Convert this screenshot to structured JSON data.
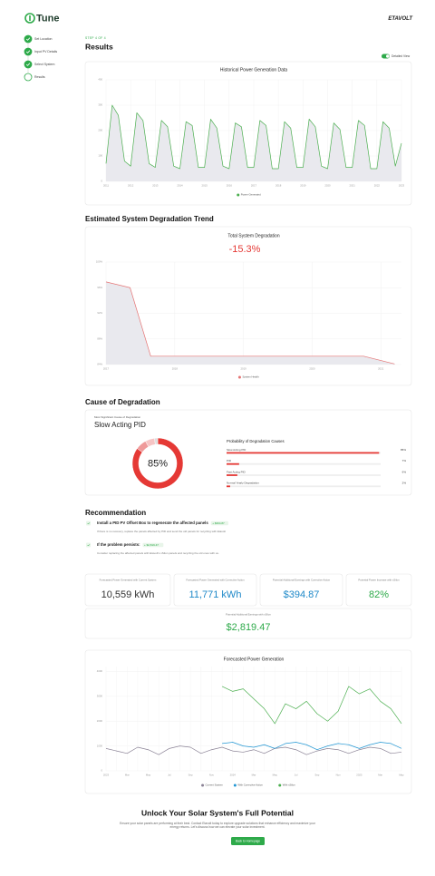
{
  "header": {
    "logo": "Tune",
    "brand": "ETAVOLT"
  },
  "steps": [
    {
      "label": "Set Location",
      "done": true
    },
    {
      "label": "Input PV Details",
      "done": true
    },
    {
      "label": "Select System",
      "done": true
    },
    {
      "label": "Results",
      "done": false
    }
  ],
  "results": {
    "step": "STEP 4 OF 4",
    "title": "Results",
    "toggle_label": "Detailed View",
    "degradation_heading": "Estimated System Degradation Trend",
    "cause_heading": "Cause of Degradation",
    "recommendation_heading": "Recommendation"
  },
  "chart_data": [
    {
      "type": "area",
      "title": "Historical Power Generation Data",
      "x": [
        2011,
        2011.25,
        2011.5,
        2011.75,
        2012,
        2012.25,
        2012.5,
        2012.75,
        2013,
        2013.25,
        2013.5,
        2013.75,
        2014,
        2014.25,
        2014.5,
        2014.75,
        2015,
        2015.25,
        2015.5,
        2015.75,
        2016,
        2016.25,
        2016.5,
        2016.75,
        2017,
        2017.25,
        2017.5,
        2017.75,
        2018,
        2018.25,
        2018.5,
        2018.75,
        2019,
        2019.25,
        2019.5,
        2019.75,
        2020,
        2020.25,
        2020.5,
        2020.75,
        2021,
        2021.25,
        2021.5,
        2021.75,
        2022,
        2022.25,
        2022.5,
        2022.75,
        2023
      ],
      "series": [
        {
          "name": "Power Generated",
          "color": "#4caf50",
          "values": [
            70,
            300,
            260,
            80,
            60,
            270,
            240,
            70,
            55,
            240,
            215,
            60,
            50,
            235,
            220,
            55,
            55,
            245,
            210,
            60,
            50,
            230,
            215,
            55,
            55,
            240,
            220,
            50,
            50,
            235,
            210,
            55,
            55,
            245,
            215,
            60,
            50,
            230,
            205,
            55,
            55,
            240,
            220,
            50,
            50,
            235,
            210,
            60,
            150
          ]
        }
      ],
      "xlim": [
        2011,
        2023
      ],
      "xticks": [
        2011,
        2012,
        2013,
        2014,
        2015,
        2016,
        2017,
        2018,
        2019,
        2020,
        2021,
        2022,
        2023
      ],
      "ylim": [
        0,
        400
      ],
      "yticks": [
        0,
        100,
        200,
        300,
        400
      ],
      "grid": true
    },
    {
      "type": "area",
      "title": "Total System Degradation",
      "annotation": "-15.3%",
      "x": [
        2017,
        2017.35,
        2017.65,
        2020.75,
        2021.2
      ],
      "series": [
        {
          "name": "System Health",
          "color": "#e57373",
          "values": [
            96.9,
            96.0,
            85.3,
            85.3,
            84.1
          ]
        }
      ],
      "xlim": [
        2017,
        2021.3
      ],
      "xticks": [
        2017,
        2018,
        2019,
        2020,
        2021
      ],
      "ylim": [
        84,
        100
      ],
      "yticks": [
        {
          "value": 84,
          "label": "84%"
        },
        {
          "value": 88,
          "label": "88%"
        },
        {
          "value": 92,
          "label": "92%"
        },
        {
          "value": 96,
          "label": "96%"
        },
        {
          "value": 100,
          "label": "100%"
        }
      ],
      "grid": true
    },
    {
      "type": "line",
      "title": "Forecasted Power Generation",
      "categories": [
        "2023",
        null,
        "Mar",
        null,
        "May",
        null,
        "Jul",
        null,
        "Sep",
        null,
        "Nov",
        null,
        "2024",
        null,
        "Mar",
        null,
        "May",
        null,
        "Jul",
        null,
        "Sep",
        null,
        "Nov",
        null,
        "2025",
        null,
        "Mar",
        null,
        "May"
      ],
      "series": [
        {
          "name": "Current System",
          "color": "#8a8295",
          "values": [
            900,
            800,
            700,
            950,
            850,
            650,
            900,
            1000,
            950,
            700,
            850,
            950,
            800,
            750,
            850,
            700,
            900,
            950,
            850,
            650,
            800,
            900,
            850,
            700,
            850,
            950,
            900,
            700,
            750
          ]
        },
        {
          "name": "With Corrective Action",
          "color": "#2196d3",
          "values": [
            null,
            null,
            null,
            null,
            null,
            null,
            null,
            null,
            null,
            null,
            null,
            1100,
            1150,
            1000,
            950,
            1050,
            900,
            1100,
            1150,
            1050,
            850,
            1000,
            1100,
            1050,
            900,
            1050,
            1150,
            1100,
            900
          ]
        },
        {
          "name": "With xSilon",
          "color": "#4caf50",
          "values": [
            null,
            null,
            null,
            null,
            null,
            null,
            null,
            null,
            null,
            null,
            null,
            3400,
            3200,
            3300,
            2900,
            2500,
            1900,
            2700,
            2500,
            2800,
            2300,
            2000,
            2400,
            3400,
            3100,
            3300,
            2800,
            2500,
            1900
          ]
        }
      ],
      "ylim": [
        0,
        4200
      ],
      "yticks": [
        0,
        1000,
        2000,
        3000,
        4000
      ],
      "grid": true
    }
  ],
  "cause": {
    "label": "Most Significant Cause of Degradation",
    "name": "Slow Acting PID",
    "probability_title": "Probability of Degradation Causes",
    "items": [
      {
        "name": "Slow Acting PID",
        "value": 85,
        "label": "85%",
        "color": "#e53935"
      },
      {
        "name": "PID",
        "value": 7,
        "label": "7%",
        "color": "#ef9a9a"
      },
      {
        "name": "Fast Acting PID",
        "value": 6,
        "label": "6%",
        "color": "#f6c5c5"
      },
      {
        "name": "Normal Yearly Degradation",
        "value": 2,
        "label": "2%",
        "color": "#dddddd"
      }
    ]
  },
  "recommendations": [
    {
      "title": "Install a PID PV Offset Box to regenerate the affected panels",
      "badge": "+ $394.87",
      "text": "If there is no recovery, replace the panels affected by PID and send the old panels for recycling with Etavolt"
    },
    {
      "title": "If the problem persists:",
      "badge": "+ $2,819.47",
      "text": "Consider replacing the affected panels with Etavolt's xSilon panels and recycling the old ones with us."
    }
  ],
  "stats": [
    {
      "label": "Forecasted Power Generated with Current System",
      "value": "10,559 kWh",
      "color": "#333333"
    },
    {
      "label": "Forecasted Power Generated with Corrective Action",
      "value": "11,771 kWh",
      "color": "#1e88c8"
    },
    {
      "label": "Potential Additional Earnings with Corrective Action",
      "value": "$394.87",
      "color": "#1e88c8"
    },
    {
      "label": "Potential Power Increase with xSilon",
      "value": "82%",
      "color": "#2eaa4a"
    },
    {
      "label": "Potential Additional Earnings with xSilon",
      "value": "$2,819.47",
      "color": "#2eaa4a"
    }
  ],
  "footer": {
    "title": "Unlock Your Solar System's Full Potential",
    "text": "Ensure your solar panels are performing at their best. Contact Etavolt today to explore upgrade solutions that enhance efficiency and maximize your energy returns. Let's discuss how we can elevate your solar investment.",
    "button": "Back to Homepage"
  }
}
